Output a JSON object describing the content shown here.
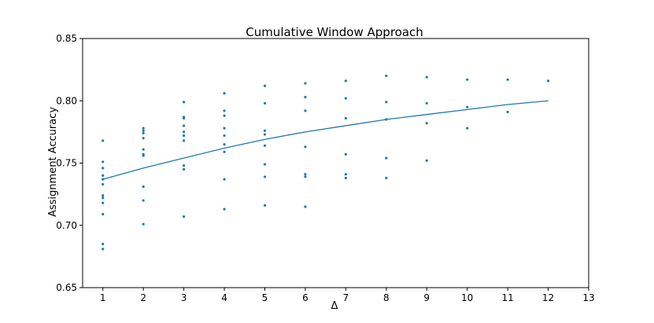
{
  "chart_data": {
    "type": "scatter",
    "title": "Cumulative Window Approach",
    "xlabel": "Δ",
    "ylabel": "Assignment Accuracy",
    "xlim": [
      0.5,
      13
    ],
    "ylim": [
      0.65,
      0.85
    ],
    "xticks": [
      1,
      2,
      3,
      4,
      5,
      6,
      7,
      8,
      9,
      10,
      11,
      12,
      13
    ],
    "yticks": [
      "0.65",
      "0.70",
      "0.75",
      "0.80",
      "0.85"
    ],
    "grid": false,
    "color": "#1f77b4",
    "series": [
      {
        "kind": "scatter",
        "points": [
          [
            1,
            0.768
          ],
          [
            1,
            0.751
          ],
          [
            1,
            0.746
          ],
          [
            1,
            0.74
          ],
          [
            1,
            0.737
          ],
          [
            1,
            0.733
          ],
          [
            1,
            0.724
          ],
          [
            1,
            0.722
          ],
          [
            1,
            0.718
          ],
          [
            1,
            0.709
          ],
          [
            1,
            0.685
          ],
          [
            1,
            0.681
          ],
          [
            2,
            0.778
          ],
          [
            2,
            0.776
          ],
          [
            2,
            0.774
          ],
          [
            2,
            0.77
          ],
          [
            2,
            0.761
          ],
          [
            2,
            0.757
          ],
          [
            2,
            0.756
          ],
          [
            2,
            0.731
          ],
          [
            2,
            0.72
          ],
          [
            2,
            0.701
          ],
          [
            3,
            0.799
          ],
          [
            3,
            0.787
          ],
          [
            3,
            0.786
          ],
          [
            3,
            0.78
          ],
          [
            3,
            0.775
          ],
          [
            3,
            0.772
          ],
          [
            3,
            0.768
          ],
          [
            3,
            0.748
          ],
          [
            3,
            0.745
          ],
          [
            3,
            0.707
          ],
          [
            4,
            0.806
          ],
          [
            4,
            0.792
          ],
          [
            4,
            0.788
          ],
          [
            4,
            0.778
          ],
          [
            4,
            0.772
          ],
          [
            4,
            0.765
          ],
          [
            4,
            0.759
          ],
          [
            4,
            0.737
          ],
          [
            4,
            0.713
          ],
          [
            5,
            0.812
          ],
          [
            5,
            0.798
          ],
          [
            5,
            0.776
          ],
          [
            5,
            0.773
          ],
          [
            5,
            0.764
          ],
          [
            5,
            0.749
          ],
          [
            5,
            0.739
          ],
          [
            5,
            0.716
          ],
          [
            6,
            0.814
          ],
          [
            6,
            0.803
          ],
          [
            6,
            0.792
          ],
          [
            6,
            0.763
          ],
          [
            6,
            0.741
          ],
          [
            6,
            0.739
          ],
          [
            6,
            0.715
          ],
          [
            7,
            0.816
          ],
          [
            7,
            0.802
          ],
          [
            7,
            0.786
          ],
          [
            7,
            0.757
          ],
          [
            7,
            0.741
          ],
          [
            7,
            0.738
          ],
          [
            8,
            0.82
          ],
          [
            8,
            0.799
          ],
          [
            8,
            0.785
          ],
          [
            8,
            0.754
          ],
          [
            8,
            0.738
          ],
          [
            9,
            0.819
          ],
          [
            9,
            0.798
          ],
          [
            9,
            0.782
          ],
          [
            9,
            0.752
          ],
          [
            10,
            0.817
          ],
          [
            10,
            0.795
          ],
          [
            10,
            0.778
          ],
          [
            11,
            0.817
          ],
          [
            11,
            0.791
          ],
          [
            12,
            0.816
          ]
        ]
      },
      {
        "kind": "line",
        "x": [
          1,
          2,
          3,
          4,
          5,
          6,
          7,
          8,
          9,
          10,
          11,
          12
        ],
        "y": [
          0.737,
          0.746,
          0.754,
          0.762,
          0.769,
          0.775,
          0.78,
          0.785,
          0.789,
          0.793,
          0.797,
          0.8
        ]
      }
    ]
  }
}
